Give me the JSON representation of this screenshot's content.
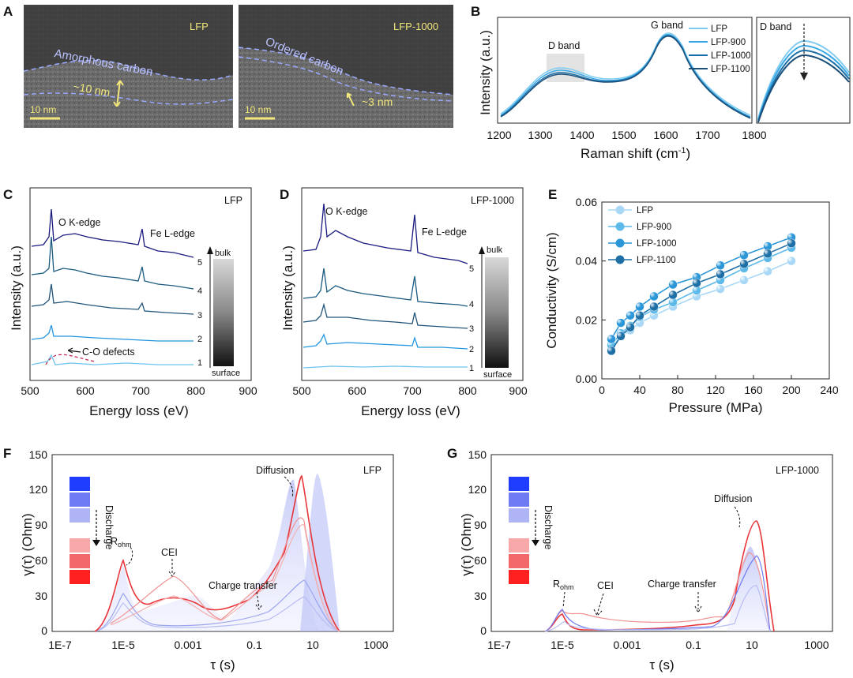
{
  "panelA": {
    "label": "A",
    "left": {
      "title": "LFP",
      "carbon": "Amorphous carbon",
      "thickness": "~10 nm",
      "scale": "10 nm"
    },
    "right": {
      "title": "LFP-1000",
      "carbon": "Ordered carbon",
      "thickness": "~3 nm",
      "scale": "10 nm"
    }
  },
  "panelB": {
    "label": "B",
    "d_band": "D band",
    "g_band": "G band",
    "inset_label": "D band",
    "ylabel": "Intensity (a.u.)",
    "xlabel_main": "Raman shift (cm",
    "xlabel_sup": "-1",
    "xlabel_close": ")",
    "xticks": [
      "1200",
      "1300",
      "1400",
      "1500",
      "1600",
      "1700",
      "1800"
    ],
    "legend": [
      "LFP",
      "LFP-900",
      "LFP-1000",
      "LFP-1100"
    ]
  },
  "panelC": {
    "label": "C",
    "sample": "LFP",
    "o_edge": "O K-edge",
    "fe_edge": "Fe L-edge",
    "defects": "C-O defects",
    "bulk": "bulk",
    "surface": "surface",
    "spectra": [
      "1",
      "2",
      "3",
      "4",
      "5"
    ],
    "ylabel": "Intensity (a.u.)",
    "xlabel": "Energy loss (eV)",
    "xticks": [
      "500",
      "600",
      "700",
      "800",
      "900"
    ]
  },
  "panelD": {
    "label": "D",
    "sample": "LFP-1000",
    "o_edge": "O K-edge",
    "fe_edge": "Fe L-edge",
    "bulk": "bulk",
    "surface": "surface",
    "spectra": [
      "1",
      "2",
      "3",
      "4",
      "5"
    ],
    "ylabel": "Intensity (a.u.)",
    "xlabel": "Energy loss (eV)",
    "xticks": [
      "500",
      "600",
      "700",
      "800",
      "900"
    ]
  },
  "panelE": {
    "label": "E"
  },
  "panelF": {
    "label": "F",
    "sample": "LFP",
    "ylabel": "γ(τ) (Ohm)",
    "xlabel": "τ (s)",
    "discharge": "Discharge",
    "r_ohm": "R",
    "r_ohm_sub": "ohm",
    "cei": "CEI",
    "charge_transfer": "Charge transfer",
    "diffusion": "Diffusion",
    "xticks": [
      "1E-7",
      "1E-5",
      "0.001",
      "0.1",
      "10",
      "1000"
    ],
    "yticks": [
      "0",
      "30",
      "60",
      "90",
      "120",
      "150"
    ]
  },
  "panelG": {
    "label": "G",
    "sample": "LFP-1000",
    "ylabel": "γ(τ) (Ohm)",
    "xlabel": "τ (s)",
    "discharge": "Discharge",
    "r_ohm": "R",
    "r_ohm_sub": "ohm",
    "cei": "CEI",
    "charge_transfer": "Charge transfer",
    "diffusion": "Diffusion",
    "xticks": [
      "1E-7",
      "1E-5",
      "0.001",
      "0.1",
      "10",
      "1000"
    ],
    "yticks": [
      "0",
      "30",
      "60",
      "90",
      "120",
      "150"
    ]
  },
  "colors": {
    "LFP": "#7fcbf0",
    "LFP-900": "#3aa9e6",
    "LFP-1000": "#1a6fa8",
    "LFP-1100": "#1b4f7a",
    "eels5": "#1a1a80",
    "eels4": "#1a5a80",
    "eels3": "#20547a",
    "eels2": "#2196e0",
    "eels1": "#6fc3ef"
  },
  "chart_data": {
    "type": "scatter",
    "xlabel": "Pressure (MPa)",
    "ylabel": "Conductivity (S/cm)",
    "xlim": [
      0,
      240
    ],
    "ylim": [
      0,
      0.06
    ],
    "xticks": [
      "0",
      "40",
      "80",
      "120",
      "160",
      "200",
      "240"
    ],
    "yticks": [
      "0.00",
      "0.02",
      "0.04",
      "0.06"
    ],
    "legend_position": "top-left",
    "x": [
      10,
      20,
      30,
      40,
      55,
      75,
      100,
      125,
      150,
      175,
      200
    ],
    "series": [
      {
        "name": "LFP",
        "color": "#a8d8f5",
        "values": [
          0.0105,
          0.0145,
          0.0165,
          0.019,
          0.0215,
          0.0245,
          0.028,
          0.0305,
          0.0335,
          0.0365,
          0.04
        ]
      },
      {
        "name": "LFP-900",
        "color": "#5cb9ea",
        "values": [
          0.0115,
          0.0155,
          0.018,
          0.021,
          0.0235,
          0.026,
          0.03,
          0.0335,
          0.0375,
          0.041,
          0.0445
        ]
      },
      {
        "name": "LFP-1000",
        "color": "#2a96d8",
        "values": [
          0.0135,
          0.019,
          0.0215,
          0.0245,
          0.028,
          0.032,
          0.0345,
          0.0385,
          0.042,
          0.045,
          0.048
        ]
      },
      {
        "name": "LFP-1100",
        "color": "#1e6fa6",
        "values": [
          0.0095,
          0.0145,
          0.0175,
          0.0215,
          0.0245,
          0.0285,
          0.0325,
          0.0355,
          0.039,
          0.0425,
          0.046
        ]
      }
    ]
  }
}
